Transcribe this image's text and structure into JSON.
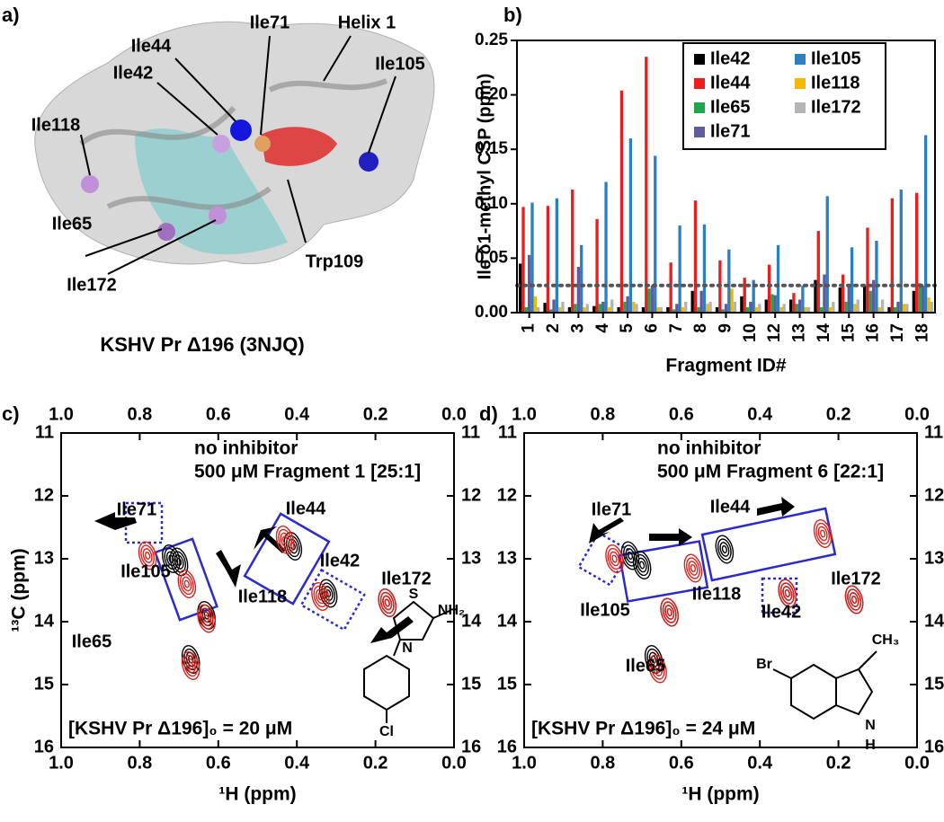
{
  "panel_labels": [
    "a)",
    "b)",
    "c)",
    "d)"
  ],
  "structure": {
    "caption": "KSHV Pr Δ196 (3NJQ)",
    "labels": [
      {
        "text": "Ile71",
        "color": "#e8a33a"
      },
      {
        "text": "Helix 1",
        "color": "#000000"
      },
      {
        "text": "Ile44",
        "color": "#1a1ab8"
      },
      {
        "text": "Ile105",
        "color": "#1a1ab8"
      },
      {
        "text": "Ile42",
        "color": "#a55fc8"
      },
      {
        "text": "Ile118",
        "color": "#a55fc8"
      },
      {
        "text": "Ile65",
        "color": "#a55fc8"
      },
      {
        "text": "Ile172",
        "color": "#a55fc8"
      },
      {
        "text": "Trp109",
        "color": "#d81e1e"
      }
    ]
  },
  "chart_data": [
    {
      "type": "bar",
      "xlabel": "Fragment ID#",
      "ylabel": "Ile δ1-methyl CSP (ppm)",
      "categories": [
        "1",
        "2",
        "3",
        "4",
        "5",
        "6",
        "7",
        "8",
        "9",
        "10",
        "12",
        "13",
        "14",
        "15",
        "16",
        "17",
        "18"
      ],
      "series": [
        {
          "name": "Ile42",
          "color": "#000000",
          "values": [
            0.045,
            0.009,
            0.005,
            0.006,
            0.005,
            0.005,
            0.005,
            0.02,
            0.005,
            0.015,
            0.012,
            0.012,
            0.03,
            0.023,
            0.025,
            0.005,
            0.02
          ]
        },
        {
          "name": "Ile44",
          "color": "#ee1c1c",
          "values": [
            0.097,
            0.098,
            0.113,
            0.086,
            0.204,
            0.235,
            0.046,
            0.103,
            0.048,
            0.032,
            0.044,
            0.018,
            0.075,
            0.035,
            0.078,
            0.105,
            0.11
          ]
        },
        {
          "name": "Ile65",
          "color": "#1fa64a",
          "values": [
            0.005,
            0.003,
            0.008,
            0.008,
            0.01,
            0.022,
            0.003,
            0.005,
            0.003,
            0.005,
            0.017,
            0.008,
            0.005,
            0.01,
            0.02,
            0.005,
            0.027
          ]
        },
        {
          "name": "Ile71",
          "color": "#605a9e",
          "values": [
            0.053,
            0.012,
            0.042,
            0.01,
            0.015,
            0.025,
            0.008,
            0.02,
            0.008,
            0.01,
            0.016,
            0.012,
            0.035,
            0.025,
            0.03,
            0.01,
            0.025
          ]
        },
        {
          "name": "Ile105",
          "color": "#2b7fc3",
          "values": [
            0.101,
            0.105,
            0.062,
            0.12,
            0.16,
            0.144,
            0.08,
            0.081,
            0.058,
            0.03,
            0.062,
            0.025,
            0.107,
            0.06,
            0.066,
            0.113,
            0.163
          ]
        },
        {
          "name": "Ile118",
          "color": "#f5b800",
          "values": [
            0.015,
            0.005,
            0.005,
            0.005,
            0.01,
            0.005,
            0.005,
            0.008,
            0.022,
            0.005,
            0.005,
            0.005,
            0.005,
            0.008,
            0.005,
            0.008,
            0.014
          ]
        },
        {
          "name": "Ile172",
          "color": "#b4b4b4",
          "values": [
            0.005,
            0.01,
            0.008,
            0.012,
            0.008,
            0.005,
            0.01,
            0.01,
            0.01,
            0.008,
            0.008,
            0.005,
            0.01,
            0.012,
            0.012,
            0.008,
            0.01
          ]
        }
      ],
      "threshold": 0.025,
      "ylim": [
        0,
        0.25
      ],
      "yticks": [
        {
          "value": 0,
          "label": "0.00"
        },
        {
          "value": 0.05,
          "label": "0.05"
        },
        {
          "value": 0.1,
          "label": "0.10"
        },
        {
          "value": 0.15,
          "label": "0.15"
        },
        {
          "value": 0.2,
          "label": "0.20"
        },
        {
          "value": 0.25,
          "label": "0.25"
        }
      ],
      "legend": "upper right"
    },
    {
      "type": "scatter",
      "xlabel": "¹H (ppm)",
      "ylabel": "¹³C (ppm)",
      "series": [
        {
          "name": "no inhibitor",
          "color": "#000000",
          "x": [
            0.72,
            0.7,
            0.41,
            0.32,
            0.17,
            0.63,
            0.67
          ],
          "values": [
            13.0,
            13.05,
            12.8,
            13.55,
            13.7,
            13.9,
            14.6
          ]
        },
        {
          "name": "500 μM Fragment 1 [25:1]",
          "color": "#e0201b",
          "x": [
            0.78,
            0.68,
            0.43,
            0.34,
            0.17,
            0.63,
            0.67
          ],
          "values": [
            12.95,
            13.4,
            12.7,
            13.6,
            13.7,
            13.95,
            14.7
          ]
        }
      ],
      "peak_labels": [
        "Ile71",
        "Ile105",
        "Ile44",
        "Ile42",
        "Ile172",
        "Ile118",
        "Ile65"
      ],
      "annotation": "[KSHV Pr Δ196]₀ = 20 μM",
      "molecule_labels": [
        "S",
        "N",
        "NH₂",
        "Cl"
      ],
      "xlim": [
        1.0,
        0.0
      ],
      "ylim": [
        11,
        16
      ],
      "xticks": [
        {
          "value": 1.0,
          "label": "1.0"
        },
        {
          "value": 0.8,
          "label": "0.8"
        },
        {
          "value": 0.6,
          "label": "0.6"
        },
        {
          "value": 0.4,
          "label": "0.4"
        },
        {
          "value": 0.2,
          "label": "0.2"
        },
        {
          "value": 0.0,
          "label": "0.0"
        }
      ],
      "yticks": [
        11,
        12,
        13,
        14,
        15,
        16
      ]
    },
    {
      "type": "scatter",
      "xlabel": "¹H (ppm)",
      "ylabel": "¹³C (ppm)",
      "series": [
        {
          "name": "no inhibitor",
          "color": "#000000",
          "x": [
            0.73,
            0.7,
            0.49,
            0.33,
            0.16,
            0.63,
            0.67
          ],
          "values": [
            12.95,
            13.1,
            12.85,
            13.55,
            13.65,
            13.85,
            14.6
          ]
        },
        {
          "name": "500 μM Fragment 6 [22:1]",
          "color": "#e0201b",
          "x": [
            0.77,
            0.57,
            0.24,
            0.33,
            0.16,
            0.63,
            0.66
          ],
          "values": [
            13.0,
            13.15,
            12.6,
            13.55,
            13.65,
            13.85,
            14.75
          ]
        }
      ],
      "peak_labels": [
        "Ile71",
        "Ile105",
        "Ile44",
        "Ile42",
        "Ile172",
        "Ile118",
        "Ile65"
      ],
      "annotation": "[KSHV Pr Δ196]₀ = 24 μM",
      "molecule_labels": [
        "Br",
        "CH₃",
        "N",
        "H"
      ],
      "xlim": [
        1.0,
        0.0
      ],
      "ylim": [
        11,
        16
      ],
      "xticks": [
        {
          "value": 1.0,
          "label": "1.0"
        },
        {
          "value": 0.8,
          "label": "0.8"
        },
        {
          "value": 0.6,
          "label": "0.6"
        },
        {
          "value": 0.4,
          "label": "0.4"
        },
        {
          "value": 0.2,
          "label": "0.2"
        },
        {
          "value": 0.0,
          "label": "0.0"
        }
      ],
      "yticks": [
        11,
        12,
        13,
        14,
        15,
        16
      ]
    }
  ]
}
